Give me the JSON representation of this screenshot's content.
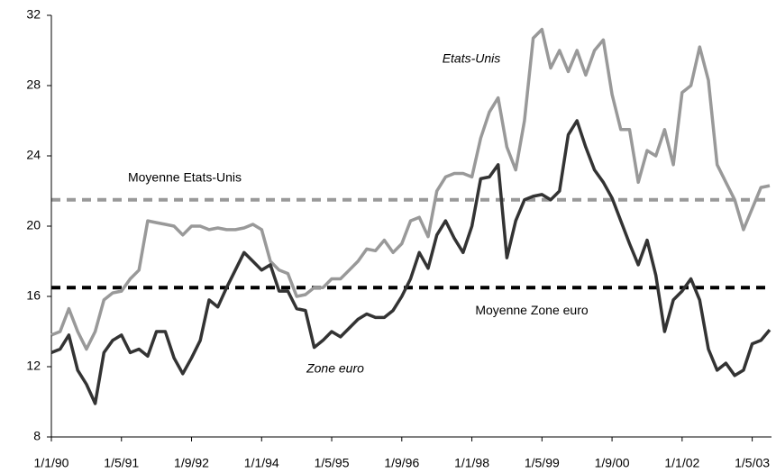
{
  "chart_data": {
    "type": "line",
    "x": [
      "1/1/90",
      "1/3/90",
      "1/5/90",
      "1/7/90",
      "1/9/90",
      "1/11/90",
      "1/1/91",
      "1/3/91",
      "1/5/91",
      "1/7/91",
      "1/9/91",
      "1/11/91",
      "1/1/92",
      "1/3/92",
      "1/5/92",
      "1/7/92",
      "1/9/92",
      "1/11/92",
      "1/1/93",
      "1/3/93",
      "1/5/93",
      "1/7/93",
      "1/9/93",
      "1/11/93",
      "1/1/94",
      "1/3/94",
      "1/5/94",
      "1/7/94",
      "1/9/94",
      "1/11/94",
      "1/1/95",
      "1/3/95",
      "1/5/95",
      "1/7/95",
      "1/9/95",
      "1/11/95",
      "1/1/96",
      "1/3/96",
      "1/5/96",
      "1/7/96",
      "1/9/96",
      "1/11/96",
      "1/1/97",
      "1/3/97",
      "1/5/97",
      "1/7/97",
      "1/9/97",
      "1/11/97",
      "1/1/98",
      "1/3/98",
      "1/5/98",
      "1/7/98",
      "1/9/98",
      "1/11/98",
      "1/1/99",
      "1/3/99",
      "1/5/99",
      "1/7/99",
      "1/9/99",
      "1/11/99",
      "1/1/00",
      "1/3/00",
      "1/5/00",
      "1/7/00",
      "1/9/00",
      "1/11/00",
      "1/1/01",
      "1/3/01",
      "1/5/01",
      "1/7/01",
      "1/9/01",
      "1/11/01",
      "1/1/02",
      "1/3/02",
      "1/5/02",
      "1/7/02",
      "1/9/02",
      "1/11/02",
      "1/1/03",
      "1/3/03",
      "1/5/03",
      "1/7/03",
      "1/9/03"
    ],
    "xticks": [
      "1/1/90",
      "1/5/91",
      "1/9/92",
      "1/1/94",
      "1/5/95",
      "1/9/96",
      "1/1/98",
      "1/5/99",
      "1/9/00",
      "1/1/02",
      "1/5/03"
    ],
    "series": [
      {
        "name": "Etats-Unis",
        "color": "#999999",
        "values": [
          13.8,
          14.0,
          15.3,
          14.0,
          13.0,
          14.0,
          15.8,
          16.2,
          16.3,
          17.0,
          17.5,
          20.3,
          20.2,
          20.1,
          20.0,
          19.5,
          20.0,
          20.0,
          19.8,
          19.9,
          19.8,
          19.8,
          19.9,
          20.1,
          19.8,
          18.0,
          17.5,
          17.3,
          16.0,
          16.1,
          16.5,
          16.5,
          17.0,
          17.0,
          17.5,
          18.0,
          18.7,
          18.6,
          19.2,
          18.5,
          19.0,
          20.3,
          20.5,
          19.4,
          22.0,
          22.8,
          23.0,
          23.0,
          22.8,
          25.0,
          26.5,
          27.3,
          24.5,
          23.2,
          26.0,
          30.7,
          31.2,
          29.0,
          30.0,
          28.8,
          30.0,
          28.6,
          30.0,
          30.6,
          27.5,
          25.5,
          25.5,
          22.5,
          24.3,
          24.0,
          25.5,
          23.5,
          27.6,
          28.0,
          30.2,
          28.3,
          23.5,
          22.5,
          21.5,
          19.8,
          21.0,
          22.2,
          22.3
        ]
      },
      {
        "name": "Zone euro",
        "color": "#333333",
        "values": [
          12.8,
          13.0,
          13.8,
          11.8,
          11.0,
          9.9,
          12.8,
          13.5,
          13.8,
          12.8,
          13.0,
          12.6,
          14.0,
          14.0,
          12.5,
          11.6,
          12.5,
          13.5,
          15.8,
          15.4,
          16.5,
          17.5,
          18.5,
          18.0,
          17.5,
          17.8,
          16.3,
          16.3,
          15.3,
          15.2,
          13.1,
          13.5,
          14.0,
          13.7,
          14.2,
          14.7,
          15.0,
          14.8,
          14.8,
          15.2,
          16.0,
          17.0,
          18.5,
          17.6,
          19.5,
          20.3,
          19.3,
          18.5,
          20.0,
          22.7,
          22.8,
          23.5,
          18.2,
          20.3,
          21.5,
          21.7,
          21.8,
          21.5,
          22.0,
          25.2,
          26.0,
          24.5,
          23.2,
          22.5,
          21.6,
          20.3,
          19.0,
          17.8,
          19.2,
          17.2,
          14.0,
          15.8,
          16.3,
          17.0,
          15.8,
          13.0,
          11.8,
          12.2,
          11.5,
          11.8,
          13.3,
          13.5,
          14.1
        ]
      }
    ],
    "reference_lines": [
      {
        "label": "Moyenne Etats-Unis",
        "value": 21.5,
        "color": "#999999"
      },
      {
        "label": "Moyenne Zone euro",
        "value": 16.5,
        "color": "#000000"
      }
    ],
    "ylim": [
      8,
      32
    ],
    "yticks": [
      8,
      12,
      16,
      20,
      24,
      28,
      32
    ],
    "grid": false
  }
}
